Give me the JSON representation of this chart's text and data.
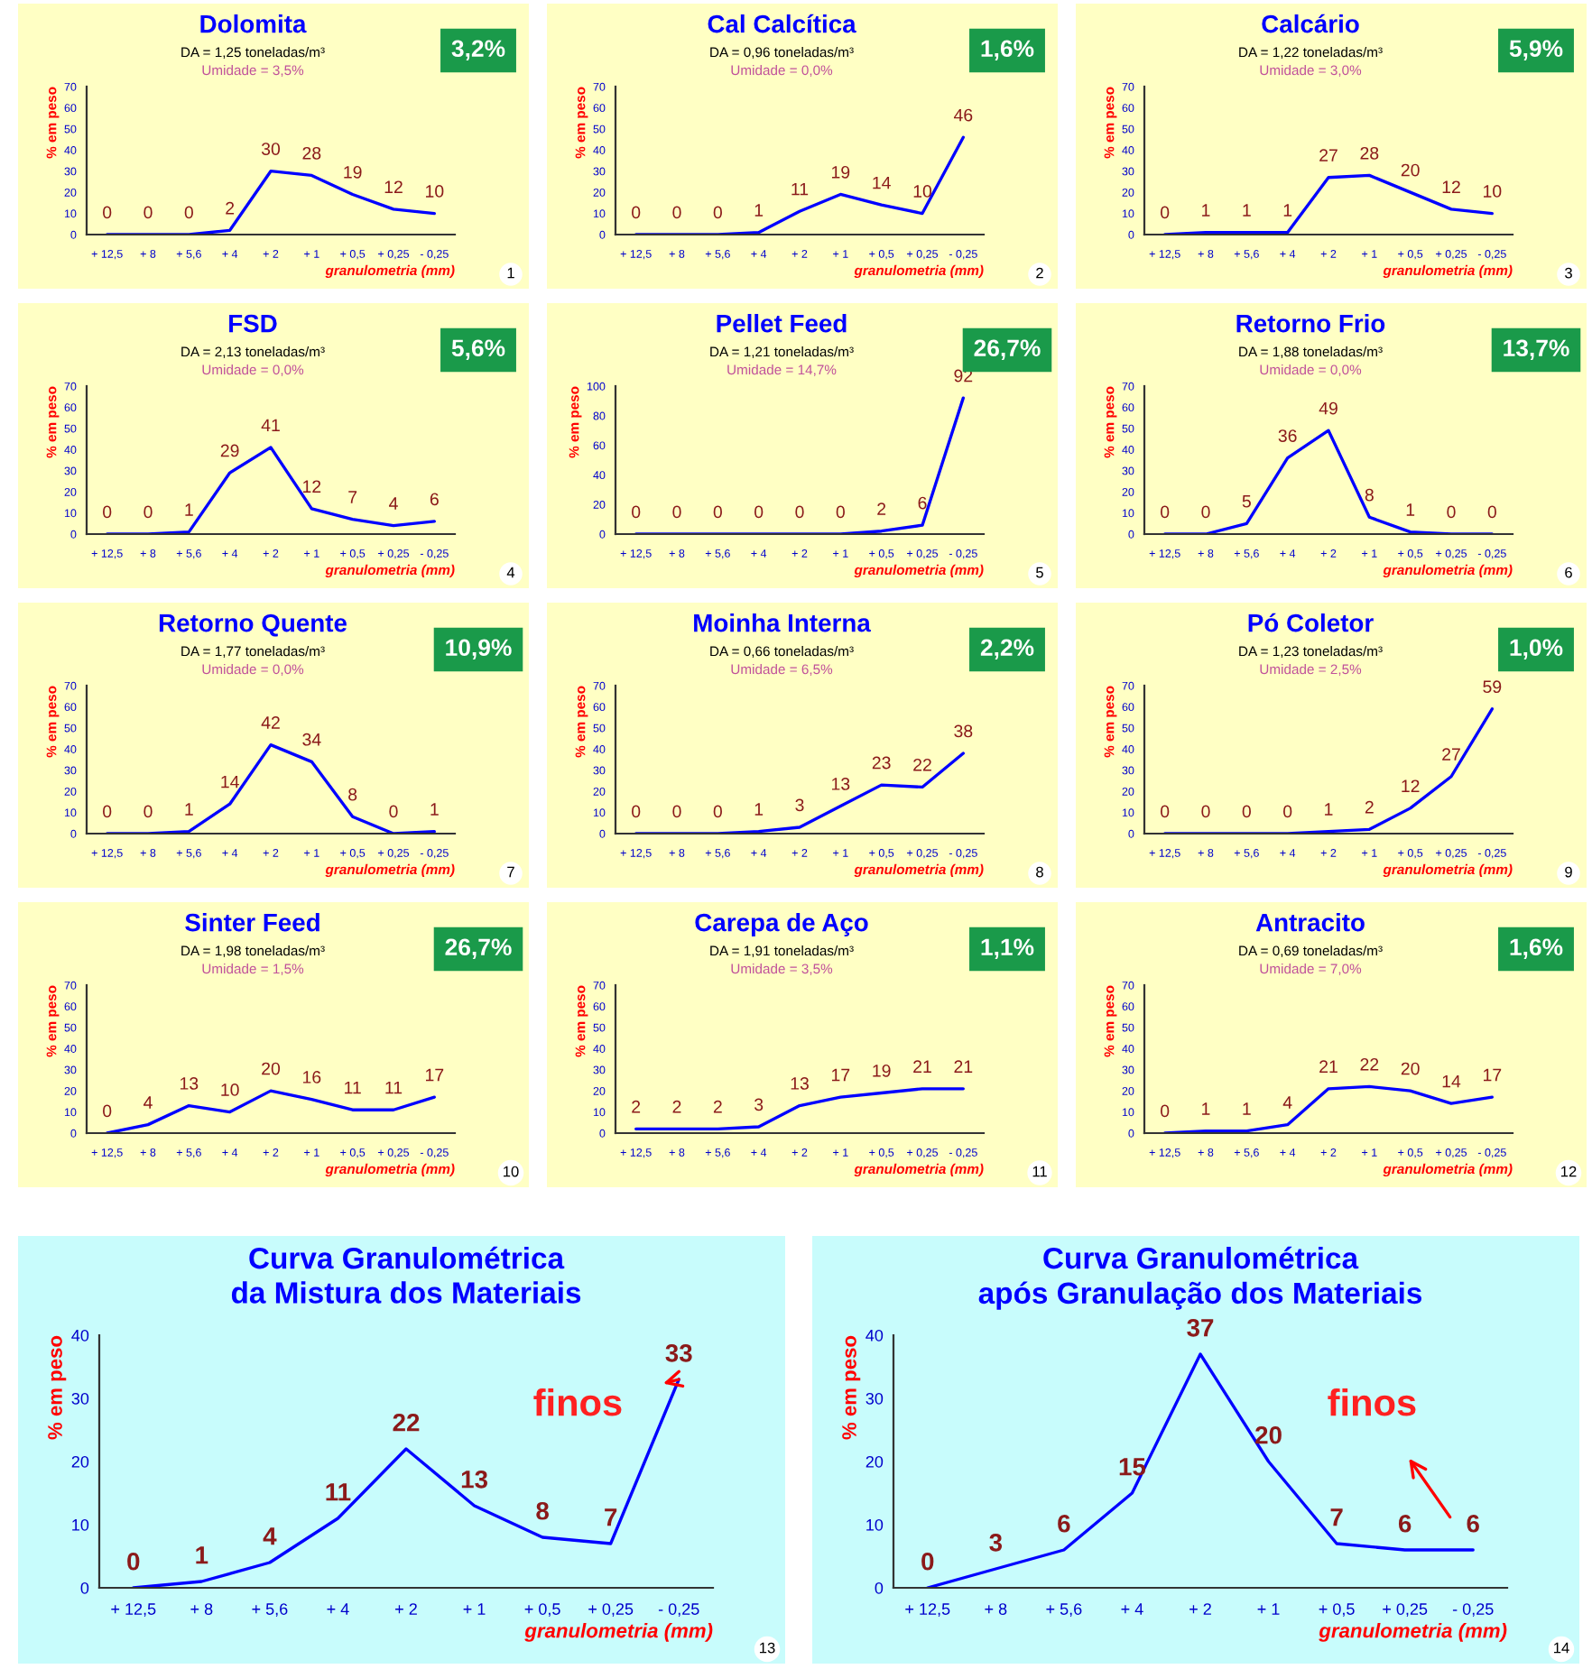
{
  "chart_data": [
    {
      "type": "line",
      "title": "Dolomita",
      "subtitle": "DA = 1,25 toneladas/m³",
      "xlabel": "granulometria (mm)",
      "ylabel": "% em peso",
      "categories": [
        "+ 12,5",
        "+ 8",
        "+ 5,6",
        "+ 4",
        "+ 2",
        "+ 1",
        "+ 0,5",
        "+ 0,25",
        "- 0,25"
      ],
      "series": [
        {
          "color": "#0000ff",
          "values": [
            0,
            0,
            0,
            2,
            30,
            28,
            19,
            12,
            10
          ]
        }
      ],
      "ylim": [
        0,
        70
      ],
      "yticks": [
        0,
        10,
        20,
        30,
        40,
        50,
        60,
        70
      ],
      "data_labels": true,
      "annotations": [
        "Umidade = 3,5%",
        "3,2%",
        "1"
      ]
    },
    {
      "type": "line",
      "title": "Cal Calcítica",
      "subtitle": "DA = 0,96 toneladas/m³",
      "xlabel": "granulometria (mm)",
      "ylabel": "% em peso",
      "categories": [
        "+ 12,5",
        "+ 8",
        "+ 5,6",
        "+ 4",
        "+ 2",
        "+ 1",
        "+ 0,5",
        "+ 0,25",
        "- 0,25"
      ],
      "series": [
        {
          "color": "#0000ff",
          "values": [
            0,
            0,
            0,
            1,
            11,
            19,
            14,
            10,
            46
          ]
        }
      ],
      "ylim": [
        0,
        70
      ],
      "yticks": [
        0,
        10,
        20,
        30,
        40,
        50,
        60,
        70
      ],
      "data_labels": true,
      "annotations": [
        "Umidade = 0,0%",
        "1,6%",
        "2"
      ]
    },
    {
      "type": "line",
      "title": "Calcário",
      "subtitle": "DA = 1,22 toneladas/m³",
      "xlabel": "granulometria (mm)",
      "ylabel": "% em peso",
      "categories": [
        "+ 12,5",
        "+ 8",
        "+ 5,6",
        "+ 4",
        "+ 2",
        "+ 1",
        "+ 0,5",
        "+ 0,25",
        "- 0,25"
      ],
      "series": [
        {
          "color": "#0000ff",
          "values": [
            0,
            1,
            1,
            1,
            27,
            28,
            20,
            12,
            10
          ]
        }
      ],
      "ylim": [
        0,
        70
      ],
      "yticks": [
        0,
        10,
        20,
        30,
        40,
        50,
        60,
        70
      ],
      "data_labels": true,
      "annotations": [
        "Umidade = 3,0%",
        "5,9%",
        "3"
      ]
    },
    {
      "type": "line",
      "title": "FSD",
      "subtitle": "DA = 2,13 toneladas/m³",
      "xlabel": "granulometria (mm)",
      "ylabel": "% em peso",
      "categories": [
        "+ 12,5",
        "+ 8",
        "+ 5,6",
        "+ 4",
        "+ 2",
        "+ 1",
        "+ 0,5",
        "+ 0,25",
        "- 0,25"
      ],
      "series": [
        {
          "color": "#0000ff",
          "values": [
            0,
            0,
            1,
            29,
            41,
            12,
            7,
            4,
            6
          ]
        }
      ],
      "ylim": [
        0,
        70
      ],
      "yticks": [
        0,
        10,
        20,
        30,
        40,
        50,
        60,
        70
      ],
      "data_labels": true,
      "annotations": [
        "Umidade = 0,0%",
        "5,6%",
        "4"
      ]
    },
    {
      "type": "line",
      "title": "Pellet Feed",
      "subtitle": "DA = 1,21 toneladas/m³",
      "xlabel": "granulometria (mm)",
      "ylabel": "% em peso",
      "categories": [
        "+ 12,5",
        "+ 8",
        "+ 5,6",
        "+ 4",
        "+ 2",
        "+ 1",
        "+ 0,5",
        "+ 0,25",
        "- 0,25"
      ],
      "series": [
        {
          "color": "#0000ff",
          "values": [
            0,
            0,
            0,
            0,
            0,
            0,
            2,
            6,
            92
          ]
        }
      ],
      "ylim": [
        0,
        100
      ],
      "yticks": [
        0,
        20,
        40,
        60,
        80,
        100
      ],
      "data_labels": true,
      "annotations": [
        "Umidade = 14,7%",
        "26,7%",
        "5"
      ]
    },
    {
      "type": "line",
      "title": "Retorno Frio",
      "subtitle": "DA = 1,88 toneladas/m³",
      "xlabel": "granulometria (mm)",
      "ylabel": "% em peso",
      "categories": [
        "+ 12,5",
        "+ 8",
        "+ 5,6",
        "+ 4",
        "+ 2",
        "+ 1",
        "+ 0,5",
        "+ 0,25",
        "- 0,25"
      ],
      "series": [
        {
          "color": "#0000ff",
          "values": [
            0,
            0,
            5,
            36,
            49,
            8,
            1,
            0,
            0
          ]
        }
      ],
      "ylim": [
        0,
        70
      ],
      "yticks": [
        0,
        10,
        20,
        30,
        40,
        50,
        60,
        70
      ],
      "data_labels": true,
      "annotations": [
        "Umidade = 0,0%",
        "13,7%",
        "6"
      ]
    },
    {
      "type": "line",
      "title": "Retorno Quente",
      "subtitle": "DA = 1,77 toneladas/m³",
      "xlabel": "granulometria (mm)",
      "ylabel": "% em peso",
      "categories": [
        "+ 12,5",
        "+ 8",
        "+ 5,6",
        "+ 4",
        "+ 2",
        "+ 1",
        "+ 0,5",
        "+ 0,25",
        "- 0,25"
      ],
      "series": [
        {
          "color": "#0000ff",
          "values": [
            0,
            0,
            1,
            14,
            42,
            34,
            8,
            0,
            1
          ]
        }
      ],
      "ylim": [
        0,
        70
      ],
      "yticks": [
        0,
        10,
        20,
        30,
        40,
        50,
        60,
        70
      ],
      "data_labels": true,
      "annotations": [
        "Umidade = 0,0%",
        "10,9%",
        "7"
      ]
    },
    {
      "type": "line",
      "title": "Moinha Interna",
      "subtitle": "DA = 0,66 toneladas/m³",
      "xlabel": "granulometria (mm)",
      "ylabel": "% em peso",
      "categories": [
        "+ 12,5",
        "+ 8",
        "+ 5,6",
        "+ 4",
        "+ 2",
        "+ 1",
        "+ 0,5",
        "+ 0,25",
        "- 0,25"
      ],
      "series": [
        {
          "color": "#0000ff",
          "values": [
            0,
            0,
            0,
            1,
            3,
            13,
            23,
            22,
            38
          ]
        }
      ],
      "ylim": [
        0,
        70
      ],
      "yticks": [
        0,
        10,
        20,
        30,
        40,
        50,
        60,
        70
      ],
      "data_labels": true,
      "annotations": [
        "Umidade = 6,5%",
        "2,2%",
        "8"
      ]
    },
    {
      "type": "line",
      "title": "Pó Coletor",
      "subtitle": "DA = 1,23 toneladas/m³",
      "xlabel": "granulometria (mm)",
      "ylabel": "% em peso",
      "categories": [
        "+ 12,5",
        "+ 8",
        "+ 5,6",
        "+ 4",
        "+ 2",
        "+ 1",
        "+ 0,5",
        "+ 0,25",
        "- 0,25"
      ],
      "series": [
        {
          "color": "#0000ff",
          "values": [
            0,
            0,
            0,
            0,
            1,
            2,
            12,
            27,
            59
          ]
        }
      ],
      "ylim": [
        0,
        70
      ],
      "yticks": [
        0,
        10,
        20,
        30,
        40,
        50,
        60,
        70
      ],
      "data_labels": true,
      "annotations": [
        "Umidade = 2,5%",
        "1,0%",
        "9"
      ]
    },
    {
      "type": "line",
      "title": "Sinter Feed",
      "subtitle": "DA = 1,98 toneladas/m³",
      "xlabel": "granulometria (mm)",
      "ylabel": "% em peso",
      "categories": [
        "+ 12,5",
        "+ 8",
        "+ 5,6",
        "+ 4",
        "+ 2",
        "+ 1",
        "+ 0,5",
        "+ 0,25",
        "- 0,25"
      ],
      "series": [
        {
          "color": "#0000ff",
          "values": [
            0,
            4,
            13,
            10,
            20,
            16,
            11,
            11,
            17
          ]
        }
      ],
      "ylim": [
        0,
        70
      ],
      "yticks": [
        0,
        10,
        20,
        30,
        40,
        50,
        60,
        70
      ],
      "data_labels": true,
      "annotations": [
        "Umidade = 1,5%",
        "26,7%",
        "10"
      ]
    },
    {
      "type": "line",
      "title": "Carepa de Aço",
      "subtitle": "DA = 1,91 toneladas/m³",
      "xlabel": "granulometria (mm)",
      "ylabel": "% em peso",
      "categories": [
        "+ 12,5",
        "+ 8",
        "+ 5,6",
        "+ 4",
        "+ 2",
        "+ 1",
        "+ 0,5",
        "+ 0,25",
        "- 0,25"
      ],
      "series": [
        {
          "color": "#0000ff",
          "values": [
            2,
            2,
            2,
            3,
            13,
            17,
            19,
            21,
            21
          ]
        }
      ],
      "ylim": [
        0,
        70
      ],
      "yticks": [
        0,
        10,
        20,
        30,
        40,
        50,
        60,
        70
      ],
      "data_labels": true,
      "annotations": [
        "Umidade = 3,5%",
        "1,1%",
        "11"
      ]
    },
    {
      "type": "line",
      "title": "Antracito",
      "subtitle": "DA = 0,69 toneladas/m³",
      "xlabel": "granulometria (mm)",
      "ylabel": "% em peso",
      "categories": [
        "+ 12,5",
        "+ 8",
        "+ 5,6",
        "+ 4",
        "+ 2",
        "+ 1",
        "+ 0,5",
        "+ 0,25",
        "- 0,25"
      ],
      "series": [
        {
          "color": "#0000ff",
          "values": [
            0,
            1,
            1,
            4,
            21,
            22,
            20,
            14,
            17
          ]
        }
      ],
      "ylim": [
        0,
        70
      ],
      "yticks": [
        0,
        10,
        20,
        30,
        40,
        50,
        60,
        70
      ],
      "data_labels": true,
      "annotations": [
        "Umidade = 7,0%",
        "1,6%",
        "12"
      ]
    },
    {
      "type": "line",
      "title": "Curva Granulométrica\nda Mistura dos Materiais",
      "xlabel": "granulometria (mm)",
      "ylabel": "% em peso",
      "categories": [
        "+ 12,5",
        "+ 8",
        "+ 5,6",
        "+ 4",
        "+ 2",
        "+ 1",
        "+ 0,5",
        "+ 0,25",
        "- 0,25"
      ],
      "series": [
        {
          "color": "#0000ff",
          "values": [
            0,
            1,
            4,
            11,
            22,
            13,
            8,
            7,
            33
          ]
        }
      ],
      "ylim": [
        0,
        40
      ],
      "yticks": [
        0,
        10,
        20,
        30,
        40
      ],
      "data_labels": true,
      "annotations": [
        "finos",
        "13"
      ]
    },
    {
      "type": "line",
      "title": "Curva Granulométrica\napós Granulação dos Materiais",
      "xlabel": "granulometria (mm)",
      "ylabel": "% em peso",
      "categories": [
        "+ 12,5",
        "+ 8",
        "+ 5,6",
        "+ 4",
        "+ 2",
        "+ 1",
        "+ 0,5",
        "+ 0,25",
        "- 0,25"
      ],
      "series": [
        {
          "color": "#0000ff",
          "values": [
            0,
            3,
            6,
            15,
            37,
            20,
            7,
            6,
            6
          ]
        }
      ],
      "ylim": [
        0,
        40
      ],
      "yticks": [
        0,
        10,
        20,
        30,
        40
      ],
      "data_labels": true,
      "annotations": [
        "finos",
        "14"
      ]
    }
  ]
}
